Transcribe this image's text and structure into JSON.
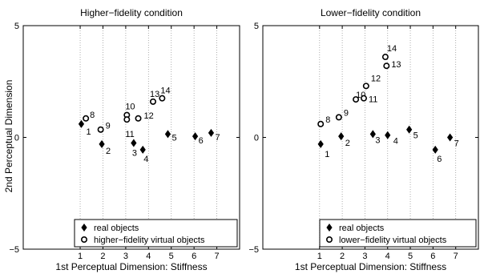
{
  "ylabel": "2nd Perceptual Dimension",
  "chart_data": [
    {
      "type": "scatter",
      "title": "Higher−fidelity condition",
      "xlabel": "1st Perceptual Dimension: Stiffness",
      "ylabel": "2nd Perceptual Dimension",
      "xlim": [
        -1.5,
        8
      ],
      "ylim": [
        -5,
        5
      ],
      "xticks": [
        "1",
        "2",
        "3",
        "4",
        "5",
        "6",
        "7"
      ],
      "yticks": [
        "5",
        "0",
        "−5"
      ],
      "grid": "vertical dotted",
      "legend_position": "bottom-right",
      "series": [
        {
          "name": "real objects",
          "marker": "filled-diamond",
          "points": [
            {
              "label": "1",
              "x": 1.05,
              "y": 0.6
            },
            {
              "label": "2",
              "x": 1.95,
              "y": -0.3
            },
            {
              "label": "3",
              "x": 3.35,
              "y": -0.25
            },
            {
              "label": "4",
              "x": 3.75,
              "y": -0.55
            },
            {
              "label": "5",
              "x": 4.85,
              "y": 0.15
            },
            {
              "label": "6",
              "x": 6.05,
              "y": 0.05
            },
            {
              "label": "7",
              "x": 6.75,
              "y": 0.2
            }
          ]
        },
        {
          "name": "higher−fidelity virtual objects",
          "marker": "open-circle",
          "points": [
            {
              "label": "8",
              "x": 1.25,
              "y": 0.85
            },
            {
              "label": "9",
              "x": 1.9,
              "y": 0.35
            },
            {
              "label": "10",
              "x": 3.05,
              "y": 1.0
            },
            {
              "label": "11",
              "x": 3.05,
              "y": 0.8
            },
            {
              "label": "12",
              "x": 3.55,
              "y": 0.85
            },
            {
              "label": "13",
              "x": 4.2,
              "y": 1.6
            },
            {
              "label": "14",
              "x": 4.6,
              "y": 1.75
            }
          ]
        }
      ]
    },
    {
      "type": "scatter",
      "title": "Lower−fidelity condition",
      "xlabel": "1st Perceptual Dimension: Stiffness",
      "ylabel": "",
      "xlim": [
        -1.5,
        8
      ],
      "ylim": [
        -5,
        5
      ],
      "xticks": [
        "1",
        "2",
        "3",
        "4",
        "5",
        "6",
        "7"
      ],
      "yticks": [
        "5",
        "0",
        "−5"
      ],
      "grid": "vertical dotted",
      "legend_position": "bottom-right",
      "series": [
        {
          "name": "real objects",
          "marker": "filled-diamond",
          "points": [
            {
              "label": "1",
              "x": 1.05,
              "y": -0.3
            },
            {
              "label": "2",
              "x": 1.95,
              "y": 0.05
            },
            {
              "label": "3",
              "x": 3.35,
              "y": 0.15
            },
            {
              "label": "4",
              "x": 4.0,
              "y": 0.1
            },
            {
              "label": "5",
              "x": 4.95,
              "y": 0.35
            },
            {
              "label": "6",
              "x": 6.1,
              "y": -0.55
            },
            {
              "label": "7",
              "x": 6.75,
              "y": 0.0
            }
          ]
        },
        {
          "name": "lower−fidelity virtual objects",
          "marker": "open-circle",
          "points": [
            {
              "label": "8",
              "x": 1.05,
              "y": 0.6
            },
            {
              "label": "9",
              "x": 1.85,
              "y": 0.9
            },
            {
              "label": "10",
              "x": 2.6,
              "y": 1.7
            },
            {
              "label": "11",
              "x": 2.95,
              "y": 1.75
            },
            {
              "label": "12",
              "x": 3.05,
              "y": 2.3
            },
            {
              "label": "13",
              "x": 3.95,
              "y": 3.2
            },
            {
              "label": "14",
              "x": 3.9,
              "y": 3.6
            }
          ]
        }
      ]
    }
  ]
}
